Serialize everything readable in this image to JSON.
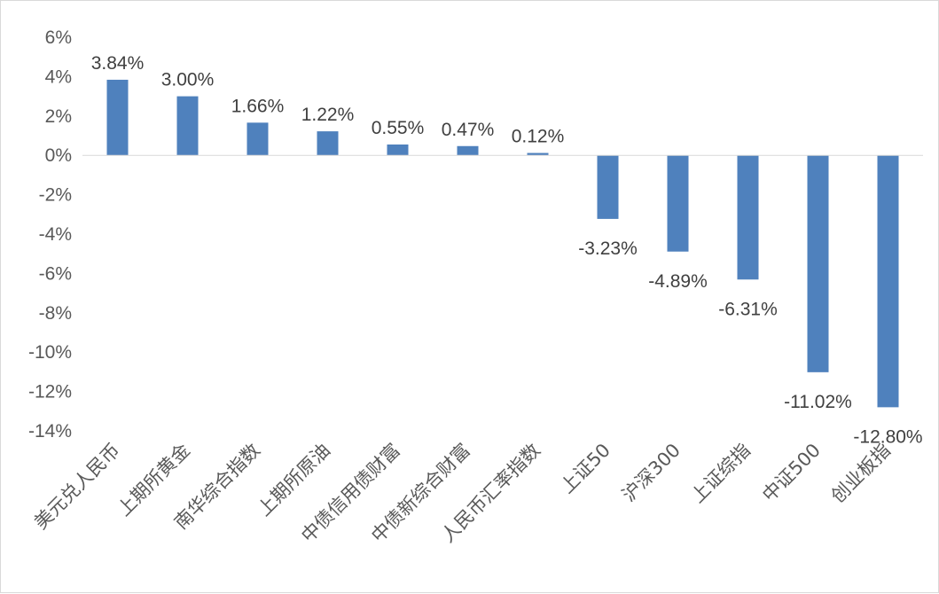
{
  "chart_data": {
    "type": "bar",
    "title": "",
    "xlabel": "",
    "ylabel": "",
    "categories": [
      "美元兑人民币",
      "上期所黄金",
      "南华综合指数",
      "上期所原油",
      "中债信用债财富",
      "中债新综合财富",
      "人民币汇率指数",
      "上证50",
      "沪深300",
      "上证综指",
      "中证500",
      "创业板指"
    ],
    "values": [
      3.84,
      3.0,
      1.66,
      1.22,
      0.55,
      0.47,
      0.12,
      -3.23,
      -4.89,
      -6.31,
      -11.02,
      -12.8
    ],
    "data_labels": [
      "3.84%",
      "3.00%",
      "1.66%",
      "1.22%",
      "0.55%",
      "0.47%",
      "0.12%",
      "-3.23%",
      "-4.89%",
      "-6.31%",
      "-11.02%",
      "-12.80%"
    ],
    "ylim": [
      -14,
      6
    ],
    "yticks": [
      6,
      4,
      2,
      0,
      -2,
      -4,
      -6,
      -8,
      -10,
      -12,
      -14
    ],
    "ytick_labels": [
      "6%",
      "4%",
      "2%",
      "0%",
      "-2%",
      "-4%",
      "-6%",
      "-8%",
      "-10%",
      "-12%",
      "-14%"
    ],
    "grid": false,
    "legend": "none",
    "bar_color": "#4f81bd",
    "axis_color": "#d9d9d9"
  }
}
